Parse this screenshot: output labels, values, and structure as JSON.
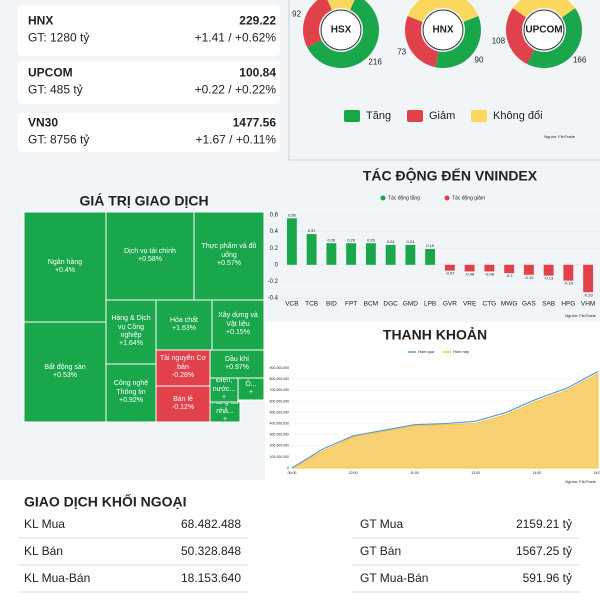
{
  "indices": [
    {
      "name": "HNX",
      "price": "229.22",
      "gt": "GT: 1280 tỷ",
      "change": "+1.41 / +0.62%"
    },
    {
      "name": "UPCOM",
      "price": "100.84",
      "gt": "GT: 485 tỷ",
      "change": "+0.22 / +0.22%"
    },
    {
      "name": "VN30",
      "price": "1477.56",
      "gt": "GT: 8756 tỷ",
      "change": "+1.67 / +0.11%"
    }
  ],
  "breadth_legend": [
    "Tăng",
    "Giảm",
    "Không đổi"
  ],
  "breadth_colors": [
    "#1aa64b",
    "#e0414a",
    "#fbd85d"
  ],
  "breadth_source": "Nguồn: FiinTrade",
  "treemap": {
    "title": "GIÁ TRỊ GIAO DỊCH",
    "cells": [
      {
        "label": "Ngân hàng",
        "change": "+0.4%"
      },
      {
        "label": "Bất động sản",
        "change": "+0.53%"
      },
      {
        "label": "Dịch vụ tài chính",
        "change": "+0.58%"
      },
      {
        "label": "Thực phẩm và đồ uống",
        "change": "+0.57%"
      },
      {
        "label": "Hàng & Dịch vụ Công nghiệp",
        "change": "+1.64%"
      },
      {
        "label": "Công nghệ Thông tin",
        "change": "+0.92%"
      },
      {
        "label": "Hóa chất",
        "change": "+1.63%"
      },
      {
        "label": "Xây dựng và Vật liệu",
        "change": "+0.15%"
      },
      {
        "label": "Tài nguyên Cơ bản",
        "change": "-0.28%"
      },
      {
        "label": "Bán lẻ",
        "change": "-0.12%"
      },
      {
        "label": "Dầu khí",
        "change": "+0.97%"
      },
      {
        "label": "Ô...",
        "change": "+"
      },
      {
        "label": "Điện, nước...",
        "change": "+"
      },
      {
        "label": "Hàng cá nhâ...",
        "change": "+"
      }
    ]
  },
  "foreign": {
    "title": "GIAO DỊCH KHỐI NGOẠI",
    "rows": [
      [
        "KL Mua",
        "68.482.488",
        "GT Mua",
        "2159.21 tỷ"
      ],
      [
        "KL Bán",
        "50.328.848",
        "GT Bán",
        "1567.25 tỷ"
      ],
      [
        "KL Mua-Bán",
        "18.153.640",
        "GT Mua-Bán",
        "591.96 tỷ"
      ]
    ]
  },
  "chart_data": [
    {
      "type": "donut",
      "title": "HSX",
      "values": [
        216,
        92,
        48
      ]
    },
    {
      "type": "donut",
      "title": "HNX",
      "values": [
        90,
        73,
        100
      ]
    },
    {
      "type": "donut",
      "title": "UPCOM",
      "values": [
        166,
        108,
        120
      ]
    },
    {
      "type": "bar",
      "title": "TÁC ĐỘNG ĐẾN VNINDEX",
      "categories": [
        "VCB",
        "TCB",
        "BID",
        "FPT",
        "BCM",
        "DGC",
        "GMD",
        "LPB",
        "GVR",
        "VRE",
        "CTG",
        "MWG",
        "GAS",
        "SAB",
        "HPG",
        "VHM"
      ],
      "values": [
        0.56,
        0.37,
        0.26,
        0.26,
        0.26,
        0.24,
        0.24,
        0.19,
        -0.07,
        -0.08,
        -0.08,
        -0.1,
        -0.12,
        -0.13,
        -0.19,
        -0.33
      ],
      "legend": [
        {
          "name": "Tác động tăng",
          "color": "#1aa64b"
        },
        {
          "name": "Tác động giảm",
          "color": "#e0414a"
        }
      ],
      "ylim": [
        -0.4,
        0.6
      ],
      "yticks": [
        -0.4,
        -0.2,
        0,
        0.2,
        0.4,
        0.6
      ],
      "grid": true,
      "source": "Nguồn: FiinTrade"
    },
    {
      "type": "line",
      "title": "THANH KHOẢN",
      "categories": [
        "09:00",
        null,
        "10:00",
        null,
        "11:00",
        null,
        "13:00",
        null,
        "14:00",
        null,
        "15:00"
      ],
      "series": [
        {
          "name": "Hôm qua",
          "color": "#5b9bd5",
          "area": false,
          "values": [
            0,
            170000000,
            290000000,
            340000000,
            390000000,
            400000000,
            420000000,
            500000000,
            620000000,
            720000000,
            870000000
          ]
        },
        {
          "name": "Hôm nay",
          "color": "#f6c343",
          "area": true,
          "values": [
            0,
            150000000,
            280000000,
            330000000,
            380000000,
            390000000,
            400000000,
            480000000,
            600000000,
            700000000,
            850000000
          ]
        }
      ],
      "ylim": [
        0,
        900000000
      ],
      "yticks": [
        0,
        {
          "value": 100000000,
          "label": "100,000,000"
        },
        {
          "value": 200000000,
          "label": "200,000,000"
        },
        {
          "value": 300000000,
          "label": "300,000,000"
        },
        {
          "value": 400000000,
          "label": "400,000,000"
        },
        {
          "value": 500000000,
          "label": "500,000,000"
        },
        {
          "value": 600000000,
          "label": "600,000,000"
        },
        {
          "value": 700000000,
          "label": "700,000,000"
        },
        {
          "value": 800000000,
          "label": "800,000,000"
        },
        {
          "value": 900000000,
          "label": "900,000,000"
        }
      ],
      "grid": true,
      "source": "Nguồn: FiinTrade"
    }
  ]
}
